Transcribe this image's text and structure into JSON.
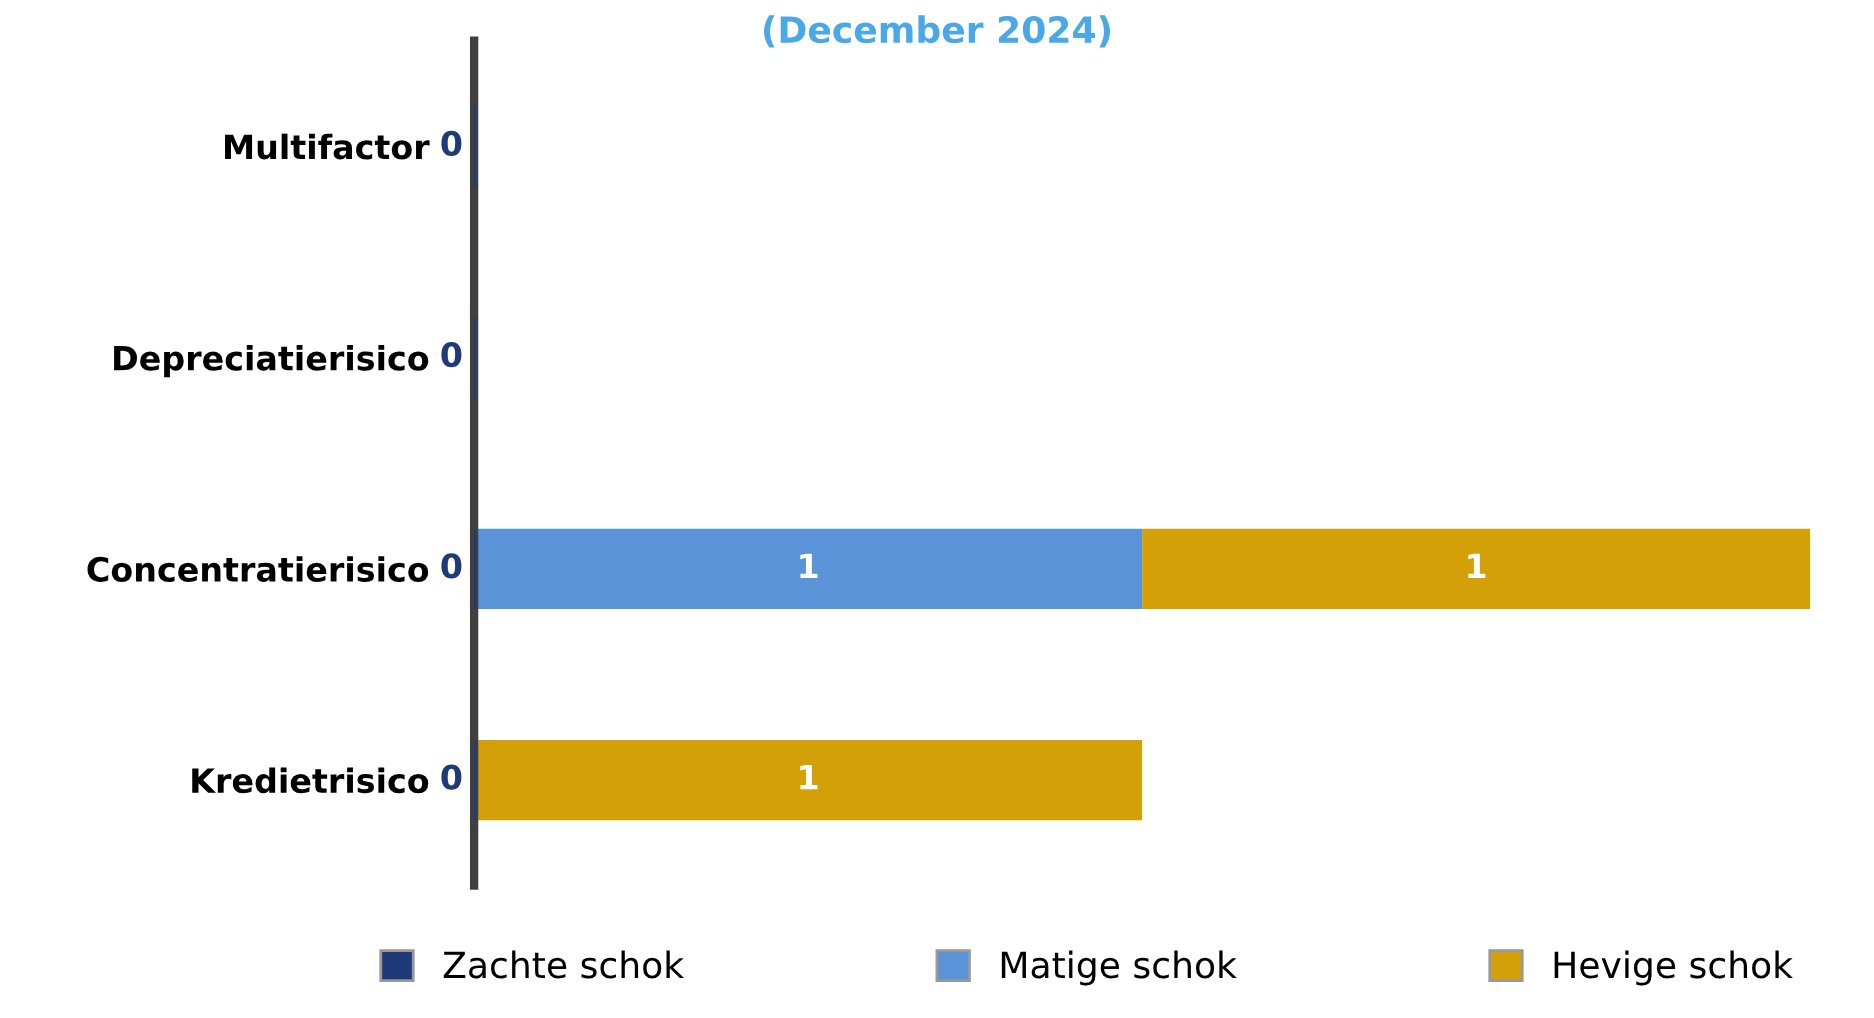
{
  "chart_data": {
    "type": "bar",
    "orientation": "horizontal",
    "stacked": true,
    "title": "(December 2024)",
    "categories": [
      "Multifactor",
      "Depreciatierisico",
      "Concentratierisico",
      "Kredietrisico"
    ],
    "series": [
      {
        "name": "Zachte schok",
        "color": "#1f3a78",
        "values": [
          0,
          0,
          0,
          0
        ],
        "value_labels": [
          "0",
          "0",
          "0",
          "0"
        ]
      },
      {
        "name": "Matige schok",
        "color": "#5a93d8",
        "values": [
          0,
          0,
          1,
          0
        ],
        "value_labels": [
          null,
          null,
          "1",
          null
        ]
      },
      {
        "name": "Hevige schok",
        "color": "#d4a008",
        "values": [
          0,
          0,
          1,
          1
        ],
        "value_labels": [
          null,
          null,
          "1",
          "1"
        ]
      }
    ],
    "legend": "bottom",
    "grid": false,
    "tick_labels": "y"
  }
}
